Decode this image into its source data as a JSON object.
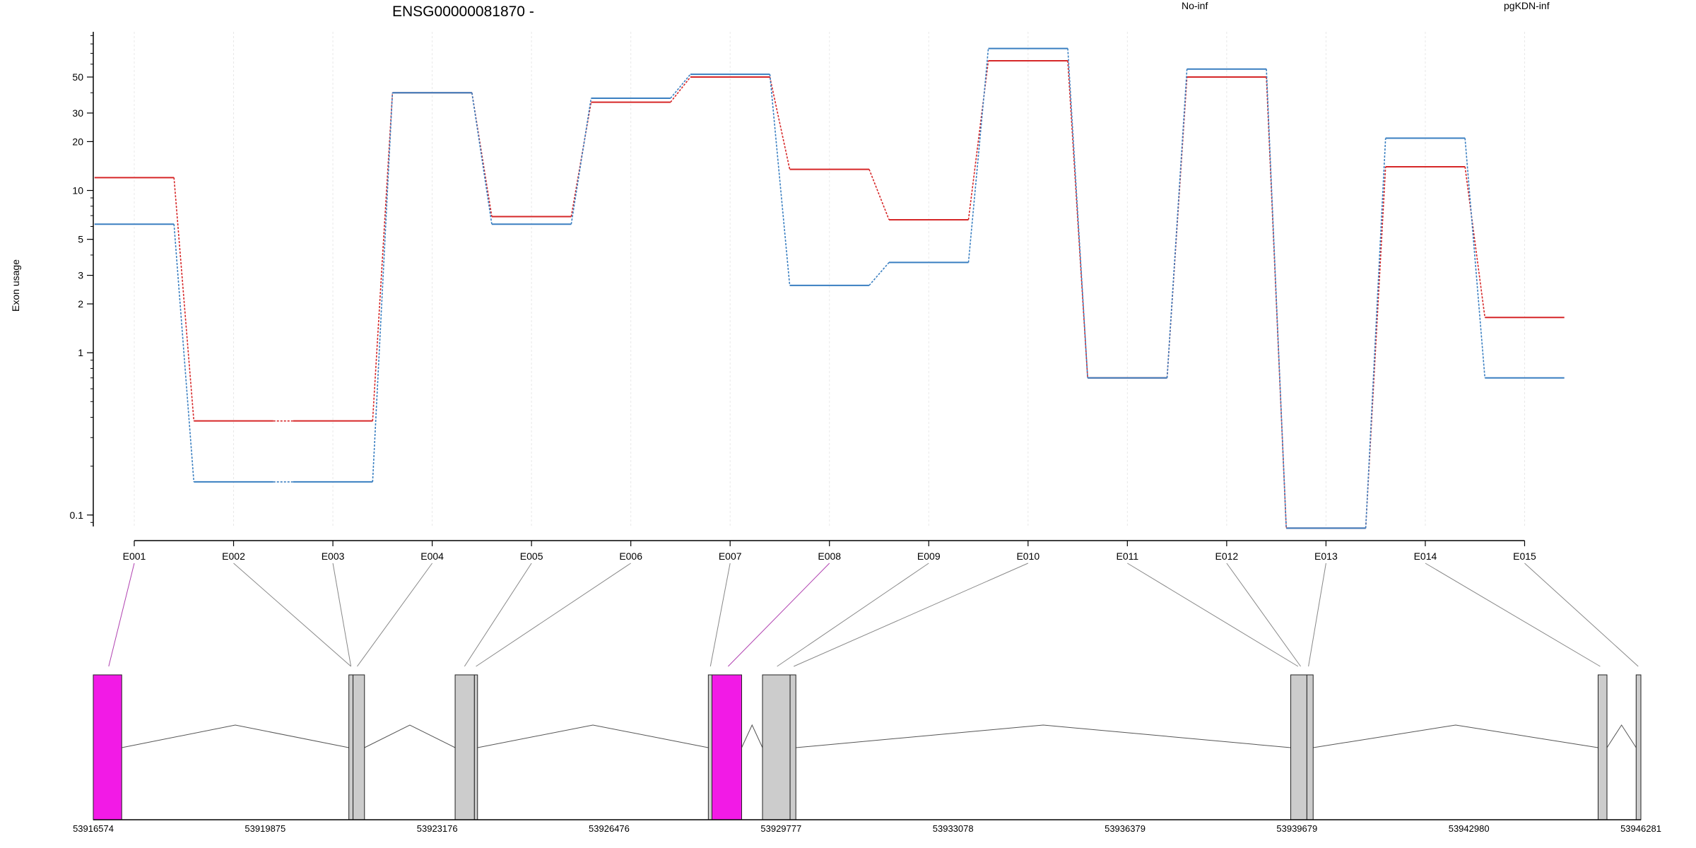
{
  "chart_data": {
    "type": "line",
    "title": "ENSG00000081870 -",
    "ylabel": "Exon usage",
    "xlabel": "",
    "y_scale": "log",
    "ylim": [
      0.085,
      95
    ],
    "yticks": [
      "0.1",
      "1",
      "2",
      "3",
      "5",
      "10",
      "20",
      "30",
      "50"
    ],
    "yticks_values": [
      0.1,
      1,
      2,
      3,
      5,
      10,
      20,
      30,
      50
    ],
    "legend_placement": "top",
    "grid": "vertical-light",
    "categories": [
      "E001",
      "E002",
      "E003",
      "E004",
      "E005",
      "E006",
      "E007",
      "E008",
      "E009",
      "E010",
      "E011",
      "E012",
      "E013",
      "E014",
      "E015"
    ],
    "series": [
      {
        "name": "No-inf",
        "color": "#d62728",
        "values": [
          12.0,
          0.38,
          0.38,
          40,
          6.9,
          35,
          50,
          13.5,
          6.6,
          63,
          0.7,
          50,
          0.083,
          14,
          1.65
        ]
      },
      {
        "name": "pgKDN-inf",
        "color": "#3a7fc1",
        "values": [
          6.2,
          0.16,
          0.16,
          40,
          6.2,
          37,
          52,
          2.6,
          3.6,
          75,
          0.7,
          56,
          0.083,
          21,
          0.7
        ]
      }
    ],
    "gene_model": {
      "coordinate_labels": [
        "53916574",
        "53919875",
        "53923176",
        "53926476",
        "53929777",
        "53933078",
        "53936379",
        "53939679",
        "53942980",
        "53946281"
      ],
      "coordinate_values": [
        53916574,
        53919875,
        53923176,
        53926476,
        53929777,
        53933078,
        53936379,
        53939679,
        53942980,
        53946281
      ],
      "range": [
        53916574,
        53946281
      ],
      "exon_color": "#cccccc",
      "highlight_color": "#f21ae6",
      "exons": [
        {
          "id": "E001",
          "start": 53916574,
          "end": 53917120,
          "highlight": true
        },
        {
          "id": "E002",
          "start": 53921480,
          "end": 53921560,
          "highlight": false
        },
        {
          "id": "E003",
          "start": 53921560,
          "end": 53921780,
          "highlight": false
        },
        {
          "id": "E004",
          "start": 53923520,
          "end": 53923890,
          "highlight": false
        },
        {
          "id": "E005",
          "start": 53923890,
          "end": 53923950,
          "highlight": false
        },
        {
          "id": "E006",
          "start": 53928380,
          "end": 53928450,
          "highlight": false
        },
        {
          "id": "E007",
          "start": 53928450,
          "end": 53929020,
          "highlight": true
        },
        {
          "id": "E008",
          "start": 53929420,
          "end": 53929950,
          "highlight": false
        },
        {
          "id": "E009",
          "start": 53929950,
          "end": 53930060,
          "highlight": false
        },
        {
          "id": "E010",
          "start": 53939560,
          "end": 53939870,
          "highlight": false
        },
        {
          "id": "E011",
          "start": 53939870,
          "end": 53939990,
          "highlight": false
        },
        {
          "id": "E012",
          "start": 53945460,
          "end": 53945630,
          "highlight": false
        },
        {
          "id": "E013",
          "start": 53946190,
          "end": 53946281,
          "highlight": false
        }
      ],
      "connectors": [
        {
          "label": "E001",
          "target": 53916870,
          "highlight": true
        },
        {
          "label": "E002",
          "target": 53921520,
          "highlight": false
        },
        {
          "label": "E003",
          "target": 53921520,
          "highlight": false
        },
        {
          "label": "E004",
          "target": 53921640,
          "highlight": false
        },
        {
          "label": "E005",
          "target": 53923700,
          "highlight": false
        },
        {
          "label": "E006",
          "target": 53923920,
          "highlight": false
        },
        {
          "label": "E007",
          "target": 53928420,
          "highlight": false
        },
        {
          "label": "E008",
          "target": 53928760,
          "highlight": true
        },
        {
          "label": "E009",
          "target": 53929700,
          "highlight": false
        },
        {
          "label": "E010",
          "target": 53930020,
          "highlight": false
        },
        {
          "label": "E011",
          "target": 53939700,
          "highlight": false
        },
        {
          "label": "E012",
          "target": 53939750,
          "highlight": false
        },
        {
          "label": "E013",
          "target": 53939900,
          "highlight": false
        },
        {
          "label": "E014",
          "target": 53945500,
          "highlight": false
        },
        {
          "label": "E015",
          "target": 53946230,
          "highlight": false
        }
      ]
    }
  }
}
